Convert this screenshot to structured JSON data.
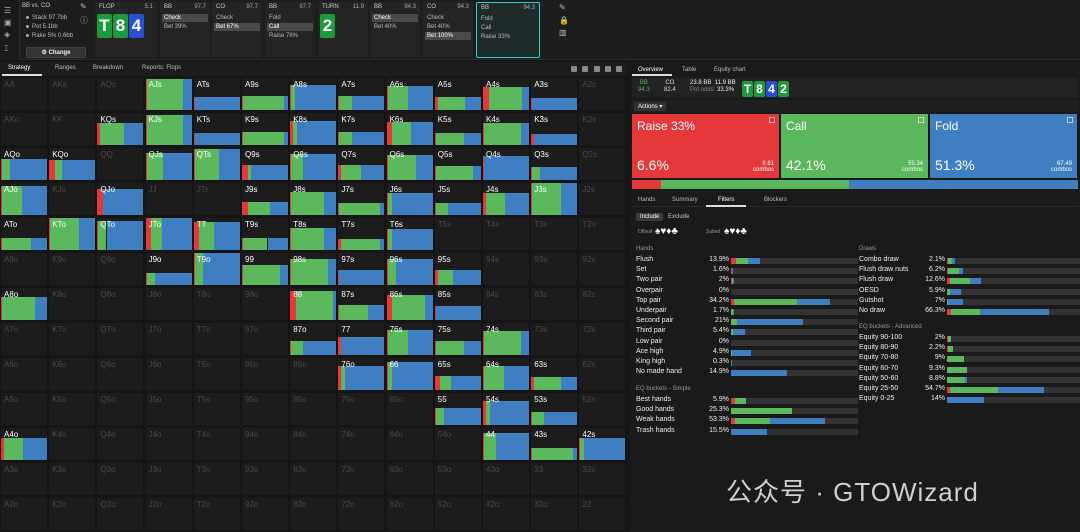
{
  "spot": {
    "title": "BB vs. CO",
    "stack": "Stack 97.7bb",
    "pot": "Pot 5.1bb",
    "rake": "Rake 5% 0.6bb",
    "change": "Change"
  },
  "actions": [
    {
      "h": "FLOP",
      "s": "5.1",
      "cards": [
        [
          "T",
          "cg"
        ],
        [
          "8",
          "cg"
        ],
        [
          "4",
          "cb"
        ]
      ],
      "opts": []
    },
    {
      "h": "BB",
      "s": "97.7",
      "opts": [
        [
          "Check",
          true
        ],
        [
          "Bet 39%",
          false
        ]
      ]
    },
    {
      "h": "CO",
      "s": "97.7",
      "opts": [
        [
          "Check",
          false
        ],
        [
          "Bet 67%",
          true
        ]
      ]
    },
    {
      "h": "BB",
      "s": "97.7",
      "opts": [
        [
          "Fold",
          false
        ],
        [
          "Call",
          true
        ],
        [
          "Raise 78%",
          false
        ]
      ]
    },
    {
      "h": "TURN",
      "s": "11.9",
      "cards": [
        [
          "2",
          "cg"
        ]
      ],
      "opts": []
    },
    {
      "h": "BB",
      "s": "94.3",
      "opts": [
        [
          "Check",
          true
        ],
        [
          "Bet 40%",
          false
        ]
      ]
    },
    {
      "h": "CO",
      "s": "94.3",
      "opts": [
        [
          "Check",
          false
        ],
        [
          "Bet 40%",
          false
        ],
        [
          "Bet 100%",
          true
        ]
      ]
    },
    {
      "h": "BB",
      "s": "94.3",
      "opts": [
        [
          "Fold",
          false
        ],
        [
          "Call",
          false
        ],
        [
          "Raise 33%",
          false
        ]
      ]
    }
  ],
  "tabs": [
    "Strategy",
    "Ranges",
    "Breakdown",
    "Reports: Flops"
  ],
  "grid": [
    [
      "AA",
      "AKs",
      "AQs",
      "AJs",
      "ATs",
      "A9s",
      "A8s",
      "A7s",
      "A6s",
      "A5s",
      "A4s",
      "A3s",
      "A2s"
    ],
    [
      "AKo",
      "KK",
      "KQs",
      "KJs",
      "KTs",
      "K9s",
      "K8s",
      "K7s",
      "K6s",
      "K5s",
      "K4s",
      "K3s",
      "K2s"
    ],
    [
      "AQo",
      "KQo",
      "QQ",
      "QJs",
      "QTs",
      "Q9s",
      "Q8s",
      "Q7s",
      "Q6s",
      "Q5s",
      "Q4s",
      "Q3s",
      "Q2s"
    ],
    [
      "AJo",
      "KJo",
      "QJo",
      "JJ",
      "JTs",
      "J9s",
      "J8s",
      "J7s",
      "J6s",
      "J5s",
      "J4s",
      "J3s",
      "J2s"
    ],
    [
      "ATo",
      "KTo",
      "QTo",
      "JTo",
      "TT",
      "T9s",
      "T8s",
      "T7s",
      "T6s",
      "T5s",
      "T4s",
      "T3s",
      "T2s"
    ],
    [
      "A9o",
      "K9o",
      "Q9o",
      "J9o",
      "T9o",
      "99",
      "98s",
      "97s",
      "96s",
      "95s",
      "94s",
      "93s",
      "92s"
    ],
    [
      "A8o",
      "K8o",
      "Q8o",
      "J8o",
      "T8o",
      "98o",
      "88",
      "87s",
      "86s",
      "85s",
      "84s",
      "83s",
      "82s"
    ],
    [
      "A7o",
      "K7o",
      "Q7o",
      "J7o",
      "T7o",
      "97o",
      "87o",
      "77",
      "76s",
      "75s",
      "74s",
      "73s",
      "72s"
    ],
    [
      "A6o",
      "K6o",
      "Q6o",
      "J6o",
      "T6o",
      "96o",
      "86o",
      "76o",
      "66",
      "65s",
      "64s",
      "63s",
      "62s"
    ],
    [
      "A5o",
      "K5o",
      "Q5o",
      "J5o",
      "T5o",
      "95o",
      "85o",
      "75o",
      "65o",
      "55",
      "54s",
      "53s",
      "52s"
    ],
    [
      "A4o",
      "K4o",
      "Q4o",
      "J4o",
      "T4o",
      "94o",
      "84o",
      "74o",
      "64o",
      "54o",
      "44",
      "43s",
      "42s"
    ],
    [
      "A3o",
      "K3o",
      "Q3o",
      "J3o",
      "T3o",
      "93o",
      "83o",
      "73o",
      "63o",
      "53o",
      "43o",
      "33",
      "32s"
    ],
    [
      "A2o",
      "K2o",
      "Q2o",
      "J2o",
      "T2o",
      "92o",
      "82o",
      "72o",
      "62o",
      "52o",
      "42o",
      "32o",
      "22"
    ]
  ],
  "active": [
    "AJs",
    "ATs",
    "A9s",
    "A8s",
    "A7s",
    "A6s",
    "A5s",
    "A4s",
    "A3s",
    "KQs",
    "KJs",
    "KTs",
    "K9s",
    "K8s",
    "K7s",
    "K6s",
    "K5s",
    "K4s",
    "K3s",
    "AQo",
    "KQo",
    "QJs",
    "QTs",
    "Q9s",
    "Q8s",
    "Q7s",
    "Q6s",
    "Q5s",
    "Q4s",
    "Q3s",
    "AJo",
    "QJo",
    "J9s",
    "J8s",
    "J7s",
    "J6s",
    "J5s",
    "J4s",
    "J3s",
    "ATo",
    "KTo",
    "QTo",
    "JTo",
    "TT",
    "T9s",
    "T8s",
    "T7s",
    "T6s",
    "J9o",
    "T9o",
    "99",
    "98s",
    "97s",
    "96s",
    "95s",
    "A8o",
    "88",
    "87s",
    "86s",
    "85s",
    "87o",
    "77",
    "76s",
    "75s",
    "74s",
    "76o",
    "66",
    "65s",
    "64s",
    "63s",
    "55",
    "54s",
    "53s",
    "A4o",
    "44",
    "43s",
    "42s"
  ],
  "right": {
    "tabs": [
      "Overview",
      "Table",
      "Equity chart"
    ],
    "info": {
      "bb": "BB",
      "bbv": "94.3",
      "co": "CO",
      "cov": "82.4",
      "pot1": "23.8 BB",
      "pot2": "11.9 BB",
      "potodds": "Pot odds:",
      "po": "33.3%",
      "cards": [
        [
          "T",
          "cg"
        ],
        [
          "8",
          "cg"
        ],
        [
          "4",
          "cb"
        ],
        [
          "2",
          "cg"
        ]
      ]
    },
    "actions_label": "Actions",
    "boxes": [
      {
        "n": "Raise 33%",
        "p": "6.6%",
        "c": "8.61",
        "cu": "combos",
        "col": "#e5383b"
      },
      {
        "n": "Call",
        "p": "42.1%",
        "c": "55.34",
        "cu": "combos",
        "col": "#5cb85c"
      },
      {
        "n": "Fold",
        "p": "51.3%",
        "c": "67.49",
        "cu": "combos",
        "col": "#3f7fc1"
      }
    ],
    "split": [
      6.6,
      42.1,
      51.3
    ],
    "subtabs": [
      "Hands",
      "Summary",
      "Filters",
      "Blockers"
    ],
    "include": "Include",
    "exclude": "Exclude",
    "offsuit": "Offsuit",
    "suited": "Suited",
    "hands_title": "Hands",
    "draws_title": "Draws",
    "eqs_title": "EQ buckets - Simple",
    "eqa_title": "EQ buckets - Advanced",
    "hands": [
      [
        "Flush",
        "13.9%",
        4,
        9,
        10
      ],
      [
        "Set",
        "1.6%",
        1,
        0,
        0.6
      ],
      [
        "Two pair",
        "2%",
        0.5,
        1,
        0.5
      ],
      [
        "Overpair",
        "0%",
        0,
        0,
        0
      ],
      [
        "Top pair",
        "34.2%",
        2,
        50,
        26
      ],
      [
        "Underpair",
        "1.7%",
        0.3,
        1.2,
        0.2
      ],
      [
        "Second pair",
        "21%",
        0,
        5,
        52
      ],
      [
        "Third pair",
        "5.4%",
        0.2,
        1,
        10
      ],
      [
        "Low pair",
        "0%",
        0,
        0,
        0
      ],
      [
        "Ace high",
        "4.9%",
        0.3,
        0.5,
        15
      ],
      [
        "King high",
        "0.3%",
        0,
        0,
        0.8
      ],
      [
        "No made hand",
        "14.9%",
        0,
        0,
        44
      ]
    ],
    "draws": [
      [
        "Combo draw",
        "2.1%",
        1,
        2.5,
        2
      ],
      [
        "Flush draw nuts",
        "6.2%",
        0.5,
        8,
        3
      ],
      [
        "Flush draw",
        "12.6%",
        2,
        14,
        8
      ],
      [
        "OESD",
        "5.9%",
        0,
        2,
        8
      ],
      [
        "Gutshot",
        "7%",
        0,
        1,
        10
      ],
      [
        "No draw",
        "66.3%",
        3,
        20,
        49
      ]
    ],
    "eqs": [
      [
        "Best hands",
        "5.9%",
        3,
        9,
        0
      ],
      [
        "Good hands",
        "25.3%",
        0,
        48,
        0
      ],
      [
        "Weak hands",
        "53.3%",
        3,
        28,
        43
      ],
      [
        "Trash hands",
        "15.5%",
        0,
        0,
        28
      ]
    ],
    "eqa": [
      [
        "Equity 90-100",
        "2%",
        1,
        2,
        0
      ],
      [
        "Equity 80-90",
        "2.2%",
        1,
        3,
        0
      ],
      [
        "Equity 70-80",
        "9%",
        0,
        12,
        0
      ],
      [
        "Equity 60-70",
        "9.3%",
        0,
        14,
        0
      ],
      [
        "Equity 50-60",
        "8.8%",
        0,
        13,
        1
      ],
      [
        "Equity 25-50",
        "54.7%",
        2,
        34,
        32
      ],
      [
        "Equity 0-25",
        "14%",
        0,
        0,
        26
      ]
    ]
  },
  "watermark": "公众号 · GTOWizard"
}
